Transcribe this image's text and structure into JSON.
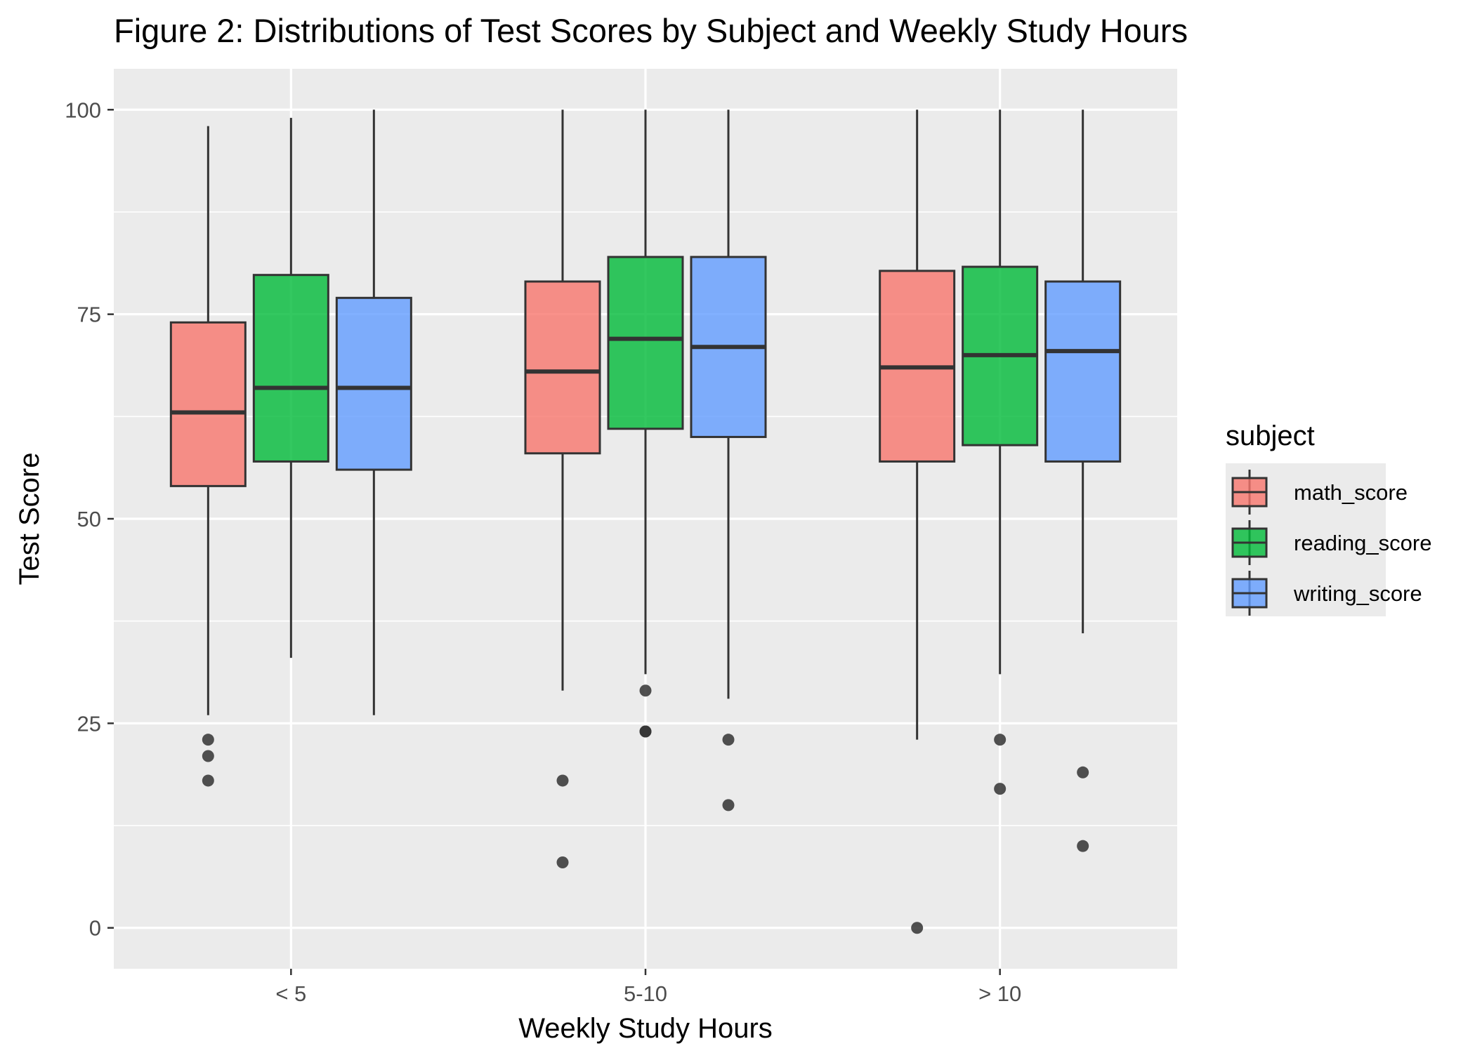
{
  "chart_data": {
    "type": "boxplot",
    "title": "Figure 2: Distributions of Test Scores by Subject and Weekly Study Hours",
    "xlabel": "Weekly Study Hours",
    "ylabel": "Test Score",
    "categories": [
      "< 5",
      "5-10",
      "> 10"
    ],
    "y_ticks": [
      0,
      25,
      50,
      75,
      100
    ],
    "ylim": [
      -5,
      105
    ],
    "grid": true,
    "legend": {
      "title": "subject",
      "position": "right"
    },
    "series": [
      {
        "name": "math_score",
        "color": "#F8766D",
        "boxes": [
          {
            "whisker_low": 26,
            "q1": 54,
            "median": 63,
            "q3": 74,
            "whisker_high": 98,
            "outliers": [
              23,
              21,
              18
            ]
          },
          {
            "whisker_low": 29,
            "q1": 58,
            "median": 68,
            "q3": 79,
            "whisker_high": 100,
            "outliers": [
              18,
              8
            ]
          },
          {
            "whisker_low": 23,
            "q1": 57,
            "median": 68.5,
            "q3": 80.3,
            "whisker_high": 100,
            "outliers": [
              0
            ]
          }
        ]
      },
      {
        "name": "reading_score",
        "color": "#00BA38",
        "boxes": [
          {
            "whisker_low": 33,
            "q1": 57,
            "median": 66,
            "q3": 79.8,
            "whisker_high": 99,
            "outliers": []
          },
          {
            "whisker_low": 31,
            "q1": 61,
            "median": 72,
            "q3": 82,
            "whisker_high": 100,
            "outliers": [
              29,
              24,
              24
            ]
          },
          {
            "whisker_low": 31,
            "q1": 59,
            "median": 70,
            "q3": 80.8,
            "whisker_high": 100,
            "outliers": [
              23,
              17
            ]
          }
        ]
      },
      {
        "name": "writing_score",
        "color": "#619CFF",
        "boxes": [
          {
            "whisker_low": 26,
            "q1": 56,
            "median": 66,
            "q3": 77,
            "whisker_high": 100,
            "outliers": []
          },
          {
            "whisker_low": 28,
            "q1": 60,
            "median": 71,
            "q3": 82,
            "whisker_high": 100,
            "outliers": [
              23,
              15
            ]
          },
          {
            "whisker_low": 36,
            "q1": 57,
            "median": 70.5,
            "q3": 79,
            "whisker_high": 100,
            "outliers": [
              19,
              10
            ]
          }
        ]
      }
    ]
  }
}
